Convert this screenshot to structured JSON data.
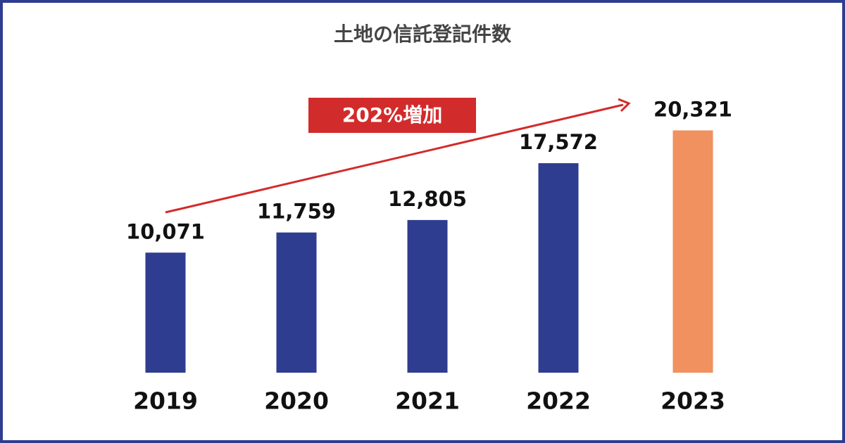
{
  "chart_data": {
    "type": "bar",
    "title": "土地の信託登記件数",
    "categories": [
      "2019",
      "2020",
      "2021",
      "2022",
      "2023"
    ],
    "values": [
      10071,
      11759,
      12805,
      17572,
      20321
    ],
    "value_labels": [
      "10,071",
      "11,759",
      "12,805",
      "17,572",
      "20,321"
    ],
    "colors": [
      "#2e3d8f",
      "#2e3d8f",
      "#2e3d8f",
      "#2e3d8f",
      "#f0915f"
    ],
    "annotation": "202%増加",
    "ylim": [
      0,
      22000
    ]
  }
}
